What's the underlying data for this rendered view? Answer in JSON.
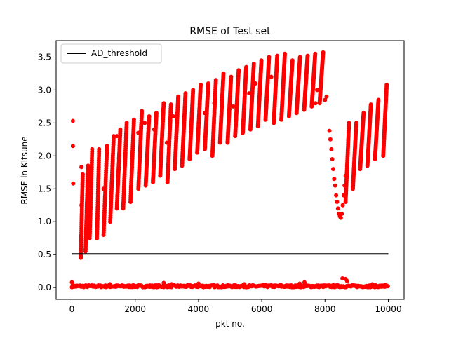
{
  "chart_data": {
    "type": "scatter",
    "title": "RMSE of Test set",
    "xlabel": "pkt no.",
    "ylabel": "RMSE in Kitsune",
    "xlim": [
      -500,
      10500
    ],
    "ylim": [
      -0.18,
      3.75
    ],
    "xticks": [
      0,
      2000,
      4000,
      6000,
      8000,
      10000
    ],
    "xtick_labels": [
      "0",
      "2000",
      "4000",
      "6000",
      "8000",
      "10000"
    ],
    "yticks": [
      0.0,
      0.5,
      1.0,
      1.5,
      2.0,
      2.5,
      3.0,
      3.5
    ],
    "ytick_labels": [
      "0.0",
      "0.5",
      "1.0",
      "1.5",
      "2.0",
      "2.5",
      "3.0",
      "3.5"
    ],
    "grid": false,
    "legend": {
      "position": "top-left",
      "entries": [
        "AD_threshold"
      ]
    },
    "threshold": {
      "name": "AD_threshold",
      "value": 0.51,
      "x": [
        0,
        10000
      ],
      "color": "#000000"
    },
    "scatter_color": "#ff0000",
    "sawtooth_ramps": [
      {
        "x0": 280,
        "x1": 340,
        "y0": 0.45,
        "y1": 1.72
      },
      {
        "x0": 430,
        "x1": 510,
        "y0": 0.55,
        "y1": 1.85
      },
      {
        "x0": 560,
        "x1": 640,
        "y0": 0.75,
        "y1": 2.1
      },
      {
        "x0": 790,
        "x1": 860,
        "y0": 0.75,
        "y1": 2.1
      },
      {
        "x0": 1000,
        "x1": 1110,
        "y0": 0.8,
        "y1": 2.15
      },
      {
        "x0": 1210,
        "x1": 1320,
        "y0": 1.0,
        "y1": 2.3
      },
      {
        "x0": 1420,
        "x1": 1530,
        "y0": 1.2,
        "y1": 2.4
      },
      {
        "x0": 1620,
        "x1": 1730,
        "y0": 1.2,
        "y1": 2.5
      },
      {
        "x0": 1850,
        "x1": 1960,
        "y0": 1.3,
        "y1": 2.55
      },
      {
        "x0": 2100,
        "x1": 2210,
        "y0": 1.5,
        "y1": 2.68
      },
      {
        "x0": 2330,
        "x1": 2440,
        "y0": 1.55,
        "y1": 2.6
      },
      {
        "x0": 2560,
        "x1": 2670,
        "y0": 1.6,
        "y1": 2.65
      },
      {
        "x0": 2790,
        "x1": 2900,
        "y0": 1.7,
        "y1": 2.8
      },
      {
        "x0": 3020,
        "x1": 3130,
        "y0": 1.6,
        "y1": 2.78
      },
      {
        "x0": 3250,
        "x1": 3360,
        "y0": 1.8,
        "y1": 2.9
      },
      {
        "x0": 3480,
        "x1": 3590,
        "y0": 1.85,
        "y1": 2.95
      },
      {
        "x0": 3720,
        "x1": 3830,
        "y0": 1.95,
        "y1": 3.0
      },
      {
        "x0": 3960,
        "x1": 4070,
        "y0": 2.05,
        "y1": 3.08
      },
      {
        "x0": 4200,
        "x1": 4310,
        "y0": 2.1,
        "y1": 3.1
      },
      {
        "x0": 4440,
        "x1": 4550,
        "y0": 2.0,
        "y1": 3.15
      },
      {
        "x0": 4680,
        "x1": 4790,
        "y0": 2.2,
        "y1": 3.25
      },
      {
        "x0": 4920,
        "x1": 5030,
        "y0": 2.2,
        "y1": 3.2
      },
      {
        "x0": 5160,
        "x1": 5270,
        "y0": 2.3,
        "y1": 3.3
      },
      {
        "x0": 5400,
        "x1": 5510,
        "y0": 2.35,
        "y1": 3.35
      },
      {
        "x0": 5640,
        "x1": 5750,
        "y0": 2.4,
        "y1": 3.4
      },
      {
        "x0": 5880,
        "x1": 5990,
        "y0": 2.45,
        "y1": 3.45
      },
      {
        "x0": 6120,
        "x1": 6230,
        "y0": 2.55,
        "y1": 3.5
      },
      {
        "x0": 6380,
        "x1": 6490,
        "y0": 2.5,
        "y1": 3.52
      },
      {
        "x0": 6620,
        "x1": 6730,
        "y0": 2.55,
        "y1": 3.55
      },
      {
        "x0": 6860,
        "x1": 6970,
        "y0": 2.6,
        "y1": 3.45
      },
      {
        "x0": 7100,
        "x1": 7210,
        "y0": 2.65,
        "y1": 3.5
      },
      {
        "x0": 7340,
        "x1": 7450,
        "y0": 2.7,
        "y1": 3.52
      },
      {
        "x0": 7580,
        "x1": 7690,
        "y0": 2.75,
        "y1": 3.55
      },
      {
        "x0": 7830,
        "x1": 7940,
        "y0": 2.8,
        "y1": 3.57
      },
      {
        "x0": 8650,
        "x1": 8760,
        "y0": 1.3,
        "y1": 2.5
      },
      {
        "x0": 8880,
        "x1": 8990,
        "y0": 1.5,
        "y1": 2.5
      },
      {
        "x0": 9110,
        "x1": 9220,
        "y0": 1.8,
        "y1": 2.65
      },
      {
        "x0": 9340,
        "x1": 9450,
        "y0": 1.85,
        "y1": 2.78
      },
      {
        "x0": 9580,
        "x1": 9690,
        "y0": 1.95,
        "y1": 2.85
      },
      {
        "x0": 9840,
        "x1": 9950,
        "y0": 2.0,
        "y1": 3.08
      }
    ],
    "dip_points": [
      {
        "x": 8140,
        "y": 2.38
      },
      {
        "x": 8170,
        "y": 2.25
      },
      {
        "x": 8200,
        "y": 2.1
      },
      {
        "x": 8230,
        "y": 1.95
      },
      {
        "x": 8260,
        "y": 1.8
      },
      {
        "x": 8290,
        "y": 1.65
      },
      {
        "x": 8320,
        "y": 1.55
      },
      {
        "x": 8350,
        "y": 1.4
      },
      {
        "x": 8380,
        "y": 1.3
      },
      {
        "x": 8410,
        "y": 1.2
      },
      {
        "x": 8440,
        "y": 1.12
      },
      {
        "x": 8470,
        "y": 1.08
      },
      {
        "x": 8500,
        "y": 1.06
      },
      {
        "x": 8530,
        "y": 1.12
      },
      {
        "x": 8560,
        "y": 1.25
      },
      {
        "x": 8590,
        "y": 1.4
      },
      {
        "x": 8620,
        "y": 1.55
      },
      {
        "x": 8650,
        "y": 1.7
      }
    ],
    "scattered_points": [
      {
        "x": 30,
        "y": 2.53
      },
      {
        "x": 30,
        "y": 2.15
      },
      {
        "x": 40,
        "y": 1.58
      },
      {
        "x": 300,
        "y": 1.83
      },
      {
        "x": 300,
        "y": 1.25
      },
      {
        "x": 1420,
        "y": 2.3
      },
      {
        "x": 2100,
        "y": 2.35
      },
      {
        "x": 2300,
        "y": 2.5
      },
      {
        "x": 2600,
        "y": 2.4
      },
      {
        "x": 3200,
        "y": 2.6
      },
      {
        "x": 4200,
        "y": 2.65
      },
      {
        "x": 4500,
        "y": 2.8
      },
      {
        "x": 5100,
        "y": 2.75
      },
      {
        "x": 5600,
        "y": 2.95
      },
      {
        "x": 6300,
        "y": 3.2
      },
      {
        "x": 7700,
        "y": 2.8
      },
      {
        "x": 7750,
        "y": 3.0
      },
      {
        "x": 8000,
        "y": 2.85
      },
      {
        "x": 8050,
        "y": 2.9
      },
      {
        "x": 1000,
        "y": 1.5
      },
      {
        "x": 3000,
        "y": 2.2
      },
      {
        "x": 5800,
        "y": 3.1
      }
    ],
    "baseline": {
      "x_start": 0,
      "x_end": 10000,
      "y_mean": 0.02,
      "spread": 0.03
    },
    "baseline_spikes": [
      {
        "x": 0,
        "y": 0.08
      },
      {
        "x": 1200,
        "y": 0.05
      },
      {
        "x": 2900,
        "y": 0.07
      },
      {
        "x": 3150,
        "y": 0.05
      },
      {
        "x": 4000,
        "y": 0.06
      },
      {
        "x": 5450,
        "y": 0.05
      },
      {
        "x": 6600,
        "y": 0.04
      },
      {
        "x": 7200,
        "y": 0.06
      },
      {
        "x": 7350,
        "y": 0.08
      },
      {
        "x": 8550,
        "y": 0.14
      },
      {
        "x": 8650,
        "y": 0.13
      },
      {
        "x": 8700,
        "y": 0.1
      },
      {
        "x": 9500,
        "y": 0.05
      },
      {
        "x": 9900,
        "y": 0.04
      }
    ]
  }
}
